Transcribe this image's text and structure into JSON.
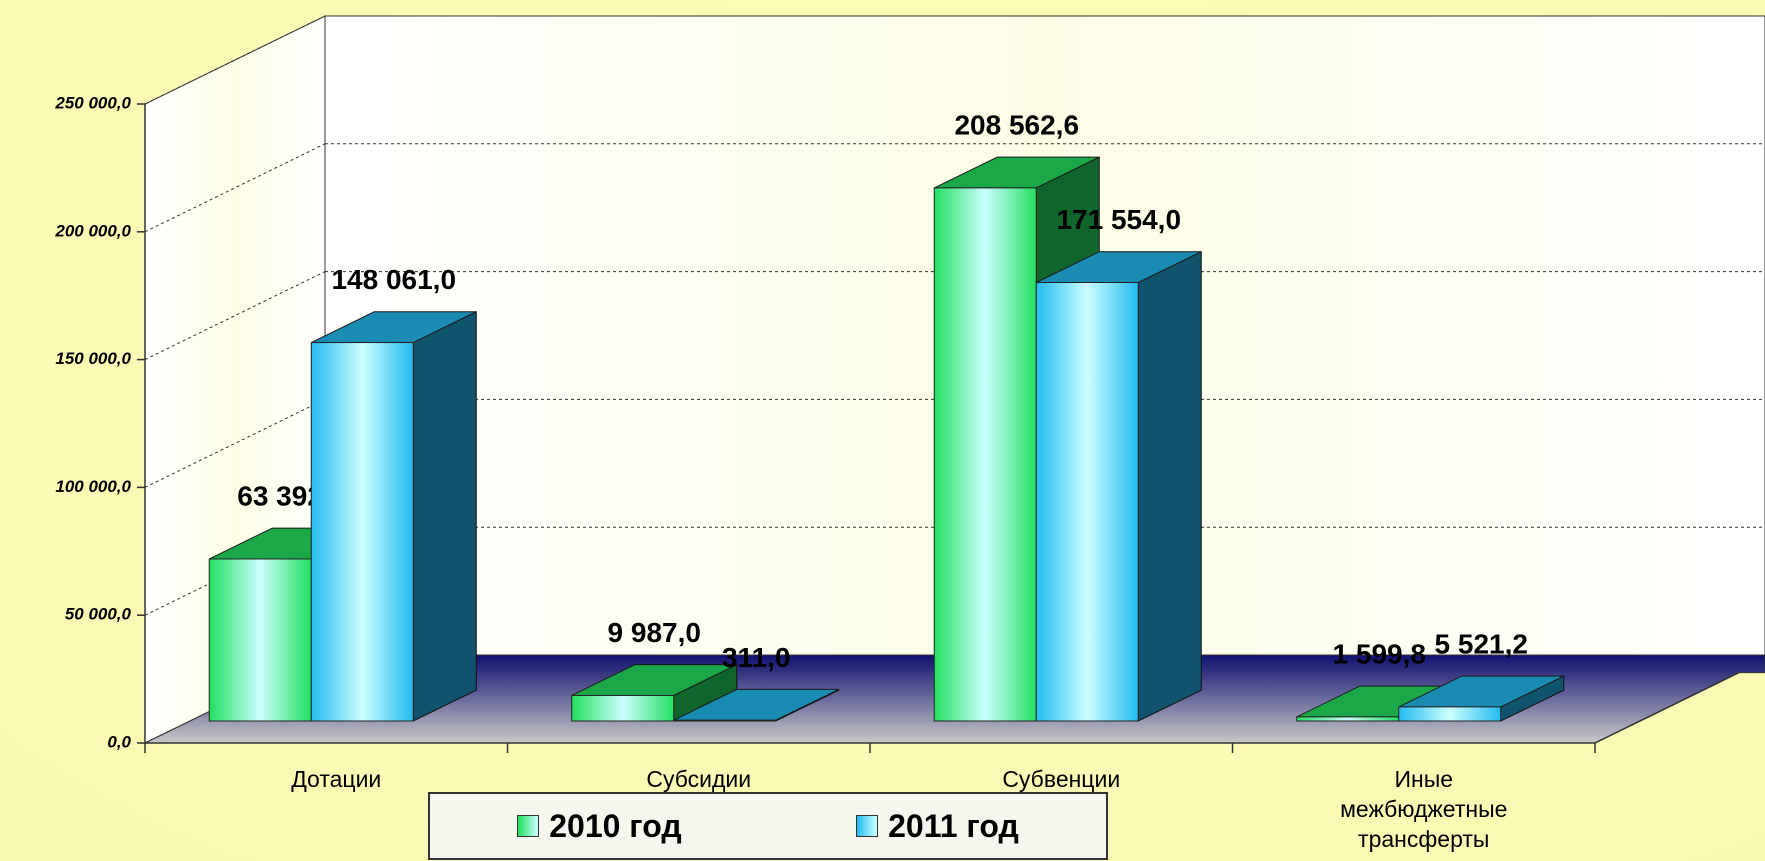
{
  "chart_data": {
    "type": "bar3d",
    "categories": [
      "Дотации",
      "Субсидии",
      "Субвенции",
      "Иные межбюджетные трансферты"
    ],
    "series": [
      {
        "name": "2010 год",
        "color": "#22e060",
        "values": [
          63392.0,
          9987.0,
          208562.6,
          1599.8
        ],
        "value_labels": [
          "63 392,0",
          "9 987,0",
          "208 562,6",
          "1 599,8"
        ]
      },
      {
        "name": "2011 год",
        "color": "#22bbf0",
        "values": [
          148061.0,
          311.0,
          171554.0,
          5521.2
        ],
        "value_labels": [
          "148 061,0",
          "311,0",
          "171 554,0",
          "5 521,2"
        ]
      }
    ],
    "ylim": [
      0,
      250000
    ],
    "yticks": [
      {
        "value": 0,
        "label": "0,0"
      },
      {
        "value": 50000,
        "label": "50 000,0"
      },
      {
        "value": 100000,
        "label": "100 000,0"
      },
      {
        "value": 150000,
        "label": "150 000,0"
      },
      {
        "value": 200000,
        "label": "200 000,0"
      },
      {
        "value": 250000,
        "label": "250 000,0"
      }
    ],
    "grid": true,
    "legend": "bottom"
  }
}
